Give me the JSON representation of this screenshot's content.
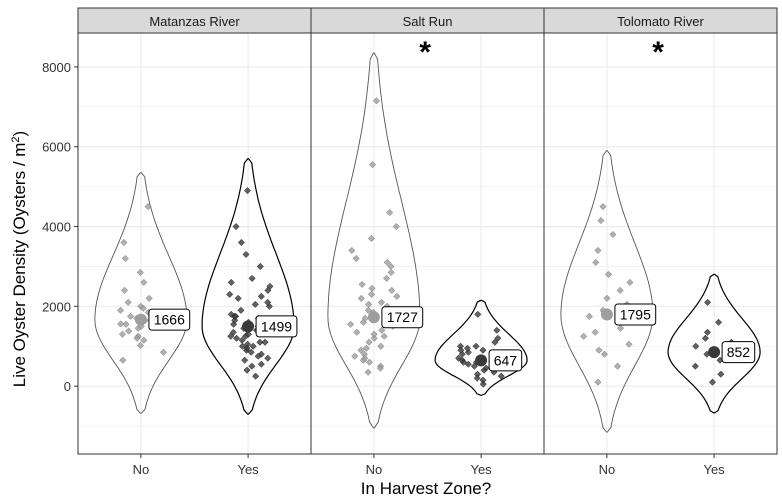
{
  "chart_data": {
    "type": "violin-jitter",
    "xlabel": "In Harvest Zone?",
    "ylabel_main": "Live Oyster Density (Oysters / m",
    "ylabel_sup": "2",
    "ylabel_close": ")",
    "yticks": [
      0,
      2000,
      4000,
      6000,
      8000
    ],
    "ylim": [
      -1700,
      8850
    ],
    "categories": [
      "No",
      "Yes"
    ],
    "colors": {
      "No": "#9e9e9e",
      "Yes": "#3a3a3a",
      "strip": "#d9d9d9",
      "grid": "#ebebeb"
    },
    "panels": [
      {
        "name": "Matanzas River",
        "groups": [
          {
            "cat": "No",
            "min": -680,
            "max": 5350,
            "median": 1666,
            "label": "1666",
            "significant": false,
            "points": [
              1020,
              1150,
              1300,
              1380,
              1450,
              1500,
              1560,
              1600,
              1650,
              1700,
              1750,
              1800,
              1850,
              1900,
              2000,
              2100,
              2200,
              2400,
              2600,
              2850,
              3200,
              3600,
              4500,
              850,
              650,
              1250,
              1700,
              1550,
              1200,
              1950
            ]
          },
          {
            "cat": "Yes",
            "min": -700,
            "max": 5700,
            "median": 1499,
            "label": "1499",
            "significant": false,
            "points": [
              250,
              400,
              550,
              700,
              800,
              900,
              950,
              1000,
              1050,
              1100,
              1150,
              1200,
              1250,
              1300,
              1350,
              1400,
              1450,
              1500,
              1550,
              1600,
              1650,
              1700,
              1750,
              1800,
              1900,
              2000,
              2100,
              2200,
              2300,
              2400,
              2500,
              2600,
              2700,
              3000,
              3300,
              3600,
              4000,
              4900,
              500,
              650,
              850,
              1100,
              1250,
              1550,
              1750,
              2050,
              2250,
              1400,
              1000,
              750
            ]
          }
        ]
      },
      {
        "name": "Salt Run",
        "groups": [
          {
            "cat": "No",
            "min": -1050,
            "max": 8350,
            "median": 1727,
            "label": "1727",
            "significant": true,
            "points": [
              350,
              500,
              650,
              750,
              900,
              1000,
              1100,
              1200,
              1300,
              1400,
              1500,
              1600,
              1700,
              1800,
              1900,
              2000,
              2100,
              2200,
              2300,
              2400,
              2550,
              2700,
              2850,
              3000,
              3200,
              3400,
              3700,
              4000,
              4350,
              5550,
              7150,
              450,
              800,
              1250,
              1650,
              2050,
              2450,
              1550,
              1350,
              950,
              600,
              2250,
              3100,
              1850,
              700
            ]
          },
          {
            "cat": "Yes",
            "min": -230,
            "max": 2150,
            "median": 647,
            "label": "647",
            "significant": false,
            "points": [
              50,
              150,
              250,
              350,
              400,
              450,
              500,
              550,
              600,
              650,
              700,
              750,
              800,
              850,
              900,
              950,
              1000,
              1100,
              1200,
              1400,
              1800,
              300,
              600,
              700,
              500,
              900,
              200,
              1000
            ]
          }
        ]
      },
      {
        "name": "Tolomato River",
        "groups": [
          {
            "cat": "No",
            "min": -1150,
            "max": 5900,
            "median": 1795,
            "label": "1795",
            "significant": true,
            "points": [
              100,
              500,
              800,
              1050,
              1250,
              1450,
              1600,
              1750,
              1900,
              2050,
              2200,
              2400,
              2600,
              2800,
              3100,
              3400,
              3800,
              4150,
              4500,
              1350,
              900
            ]
          },
          {
            "cat": "Yes",
            "min": -670,
            "max": 2800,
            "median": 852,
            "label": "852",
            "significant": false,
            "points": [
              100,
              300,
              500,
              650,
              800,
              900,
              1000,
              1100,
              1200,
              1350,
              1600,
              2100,
              700
            ]
          }
        ]
      }
    ]
  }
}
